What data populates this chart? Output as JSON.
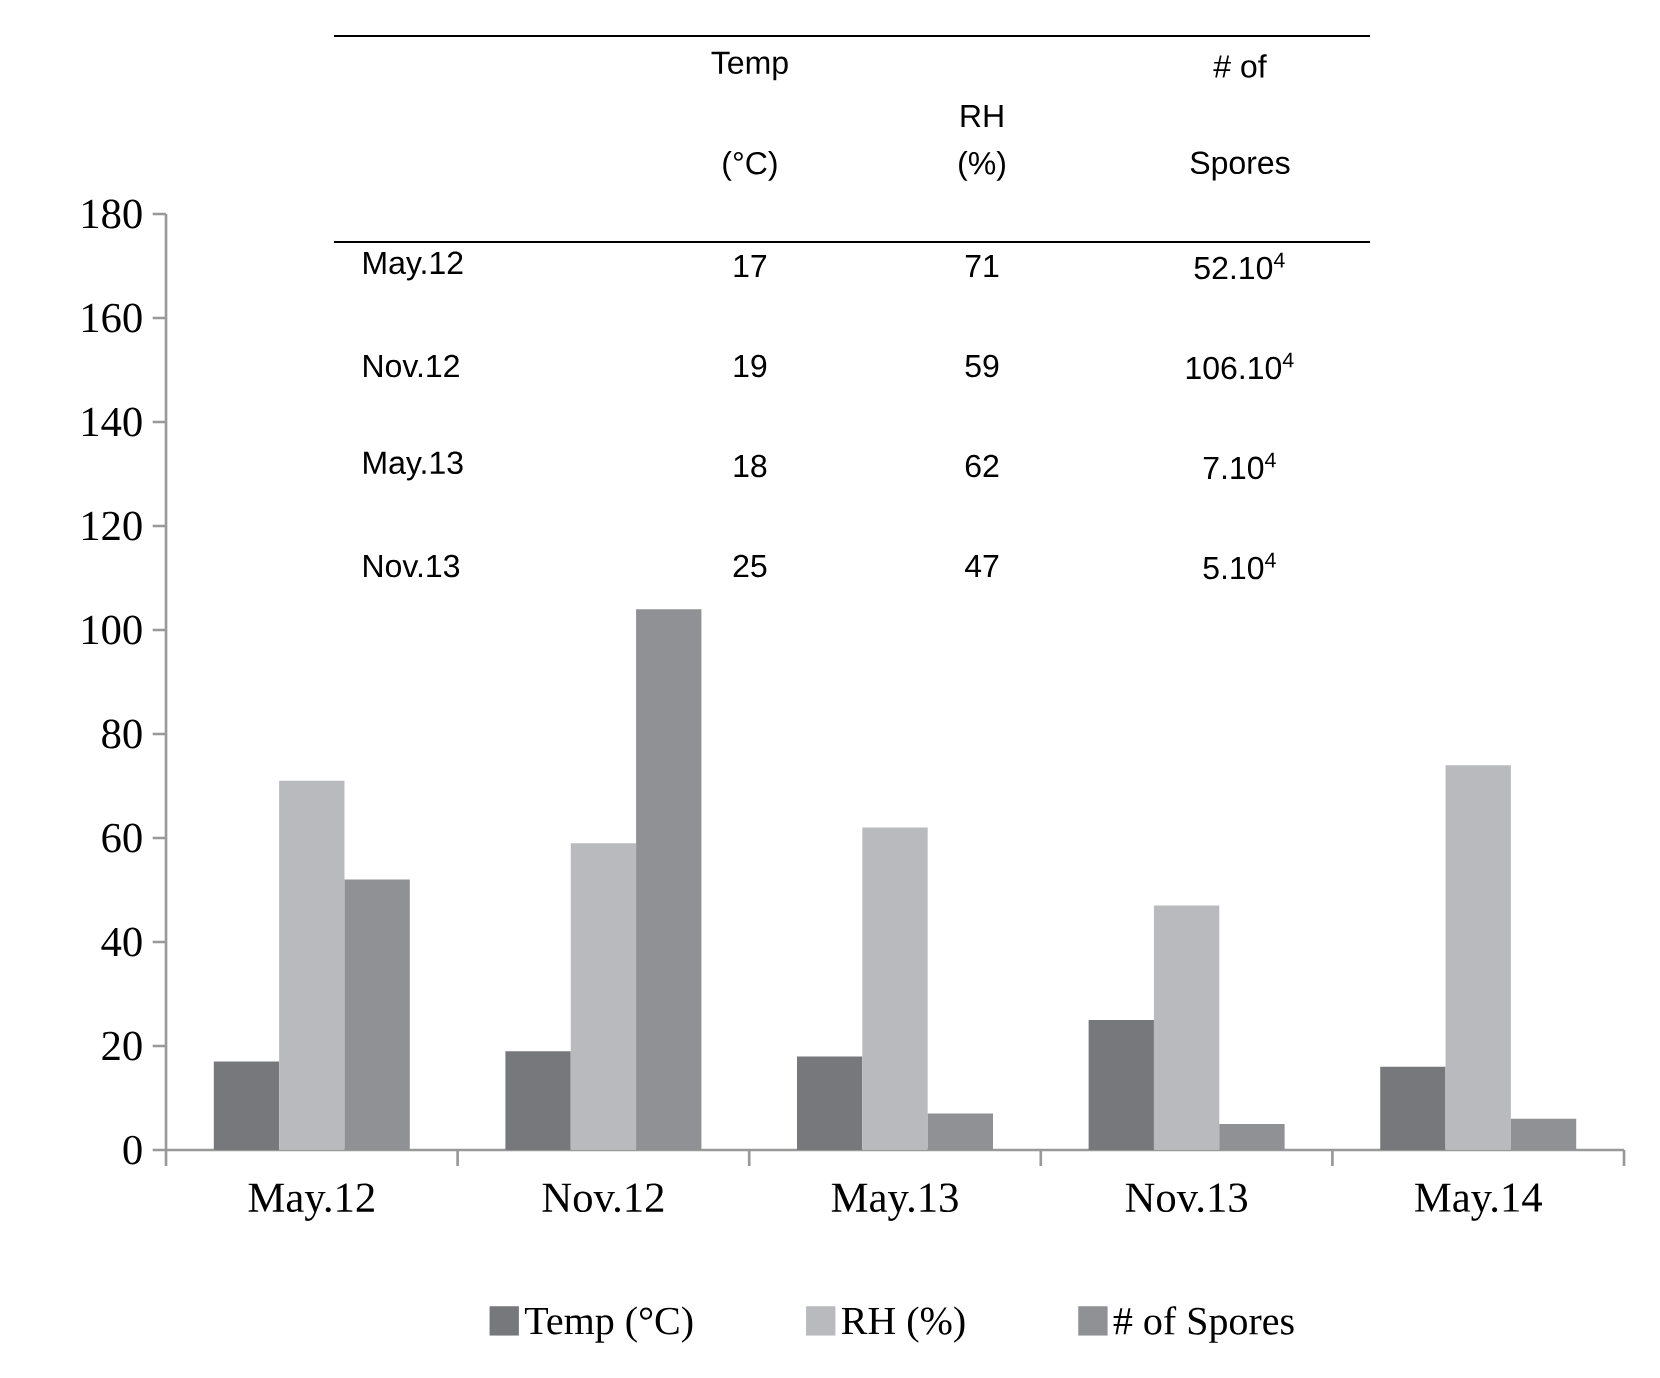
{
  "chart_data": {
    "type": "bar",
    "categories": [
      "May.12",
      "Nov.12",
      "May.13",
      "Nov.13",
      "May.14"
    ],
    "series": [
      {
        "name": "Temp (°C)",
        "color": "#77787b",
        "values": [
          17,
          19,
          18,
          25,
          16
        ]
      },
      {
        "name": "RH (%)",
        "color": "#b9babd",
        "values": [
          71,
          59,
          62,
          47,
          74
        ]
      },
      {
        "name": "# of Spores",
        "color": "#909195",
        "values": [
          52,
          104,
          7,
          5,
          6
        ]
      }
    ],
    "ylim": [
      0,
      180
    ],
    "yticks": [
      0,
      20,
      40,
      60,
      80,
      100,
      120,
      140,
      160,
      180
    ],
    "legend": "bottom",
    "annotations": [
      "Temp",
      "(°C)",
      "RH",
      "(%)",
      "# of",
      "Spores",
      "May.12",
      "17",
      "71",
      "52.10$^{4}$",
      "Nov.12",
      "19",
      "59",
      "106.10$^{4}$",
      "May.13",
      "18",
      "62",
      "7.10$^{4}$",
      "Nov.13",
      "25",
      "47",
      "5.10$^{4}$"
    ]
  }
}
